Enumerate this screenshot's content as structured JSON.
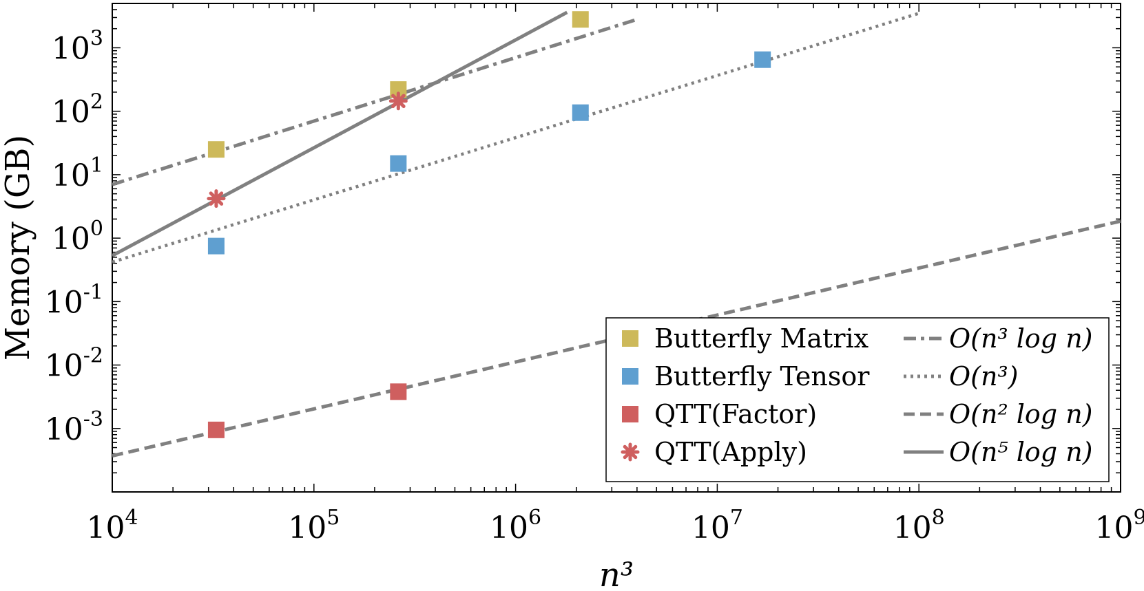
{
  "chart_data": {
    "type": "scatter",
    "xscale": "log",
    "yscale": "log",
    "xlim": [
      10000,
      1000000000
    ],
    "ylim": [
      0.0001,
      5000
    ],
    "xlabel": "n³",
    "ylabel": "Memory (GB)",
    "x_ticks": [
      {
        "value": 10000,
        "base": "10",
        "exp": "4"
      },
      {
        "value": 100000,
        "base": "10",
        "exp": "5"
      },
      {
        "value": 1000000,
        "base": "10",
        "exp": "6"
      },
      {
        "value": 10000000,
        "base": "10",
        "exp": "7"
      },
      {
        "value": 100000000,
        "base": "10",
        "exp": "8"
      },
      {
        "value": 1000000000,
        "base": "10",
        "exp": "9"
      }
    ],
    "y_ticks": [
      {
        "value": 0.001,
        "base": "10",
        "exp": "-3"
      },
      {
        "value": 0.01,
        "base": "10",
        "exp": "-2"
      },
      {
        "value": 0.1,
        "base": "10",
        "exp": "-1"
      },
      {
        "value": 1,
        "base": "10",
        "exp": "0"
      },
      {
        "value": 10,
        "base": "10",
        "exp": "1"
      },
      {
        "value": 100,
        "base": "10",
        "exp": "2"
      },
      {
        "value": 1000,
        "base": "10",
        "exp": "3"
      }
    ],
    "series": [
      {
        "name": "Butterfly Matrix",
        "marker": "square",
        "color": "#CDB95A",
        "points": [
          [
            32768,
            25
          ],
          [
            262144,
            220
          ],
          [
            2097152,
            2800
          ]
        ]
      },
      {
        "name": "Butterfly Tensor",
        "marker": "square",
        "color": "#5F9FD0",
        "points": [
          [
            32768,
            0.75
          ],
          [
            262144,
            15
          ],
          [
            2097152,
            95
          ],
          [
            16777216,
            650
          ]
        ]
      },
      {
        "name": "QTT(Factor)",
        "marker": "square",
        "color": "#CF5F5F",
        "points": [
          [
            32768,
            0.00095
          ],
          [
            262144,
            0.0038
          ]
        ]
      },
      {
        "name": "QTT(Apply)",
        "marker": "asterisk",
        "color": "#CF5F5F",
        "points": [
          [
            32768,
            4.2
          ],
          [
            262144,
            145
          ]
        ]
      }
    ],
    "reference_lines": [
      {
        "label": "O(n³ log n)",
        "math": "O(n^3 log n)",
        "style": "dashdot",
        "color": "#808080",
        "x_range": [
          10000,
          4000000
        ],
        "intercept": 7,
        "slope_decades": 1.0
      },
      {
        "label": "O(n³)",
        "math": "O(n^3)",
        "style": "dotted",
        "color": "#808080",
        "x_range": [
          10000,
          100000000
        ],
        "intercept": 0.42,
        "slope_decades": 0.98
      },
      {
        "label": "O(n² log n)",
        "math": "O(n^2 log n)",
        "style": "dashed",
        "color": "#808080",
        "x_range": [
          10000,
          1000000000
        ],
        "intercept": 0.00037,
        "slope_decades": 0.74
      },
      {
        "label": "O(n⁵ log n)",
        "math": "O(n^5 log n)",
        "style": "solid",
        "color": "#808080",
        "x_range": [
          10000,
          1800000
        ],
        "intercept": 0.53,
        "slope_decades": 1.7
      }
    ],
    "legend_position": "bottom-right"
  }
}
